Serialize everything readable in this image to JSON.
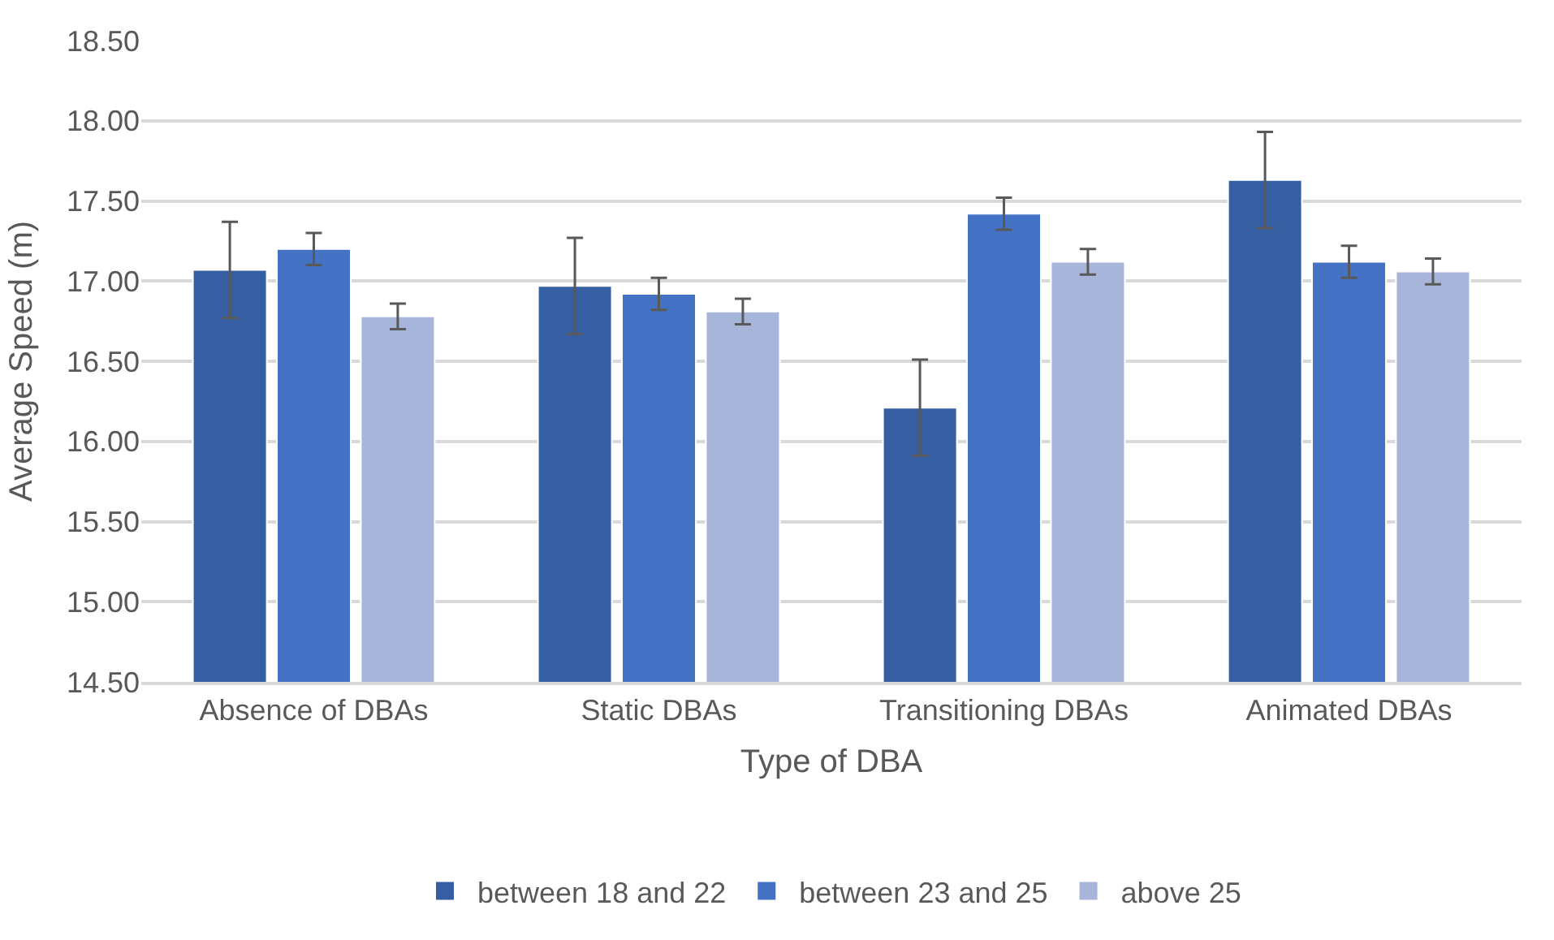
{
  "chart_data": {
    "type": "bar",
    "xlabel": "Type of DBA",
    "ylabel": "Average Speed (m)",
    "categories": [
      "Absence of DBAs",
      "Static DBAs",
      "Transitioning DBAs",
      "Animated DBAs"
    ],
    "series": [
      {
        "name": "between 18 and 22",
        "color": "#365fa3",
        "values": [
          17.07,
          16.97,
          16.21,
          17.63
        ],
        "errors": [
          0.3,
          0.3,
          0.3,
          0.3
        ]
      },
      {
        "name": "between 23 and 25",
        "color": "#4472c4",
        "values": [
          17.2,
          16.92,
          17.42,
          17.12
        ],
        "errors": [
          0.1,
          0.1,
          0.1,
          0.1
        ]
      },
      {
        "name": "above 25",
        "color": "#a8b5da",
        "values": [
          16.78,
          16.81,
          17.12,
          17.06
        ],
        "errors": [
          0.08,
          0.08,
          0.08,
          0.08
        ]
      }
    ],
    "ylim": [
      14.5,
      18.5
    ],
    "yticks": [
      {
        "value": 14.5,
        "label": "14.50"
      },
      {
        "value": 15,
        "label": "15.00"
      },
      {
        "value": 15.5,
        "label": "15.50"
      },
      {
        "value": 16,
        "label": "16.00"
      },
      {
        "value": 16.5,
        "label": "16.50"
      },
      {
        "value": 17,
        "label": "17.00"
      },
      {
        "value": 17.5,
        "label": "17.50"
      },
      {
        "value": 18,
        "label": "18.00"
      },
      {
        "value": 18.5,
        "label": "18.50"
      }
    ],
    "grid": "y",
    "legend": "bottom"
  }
}
